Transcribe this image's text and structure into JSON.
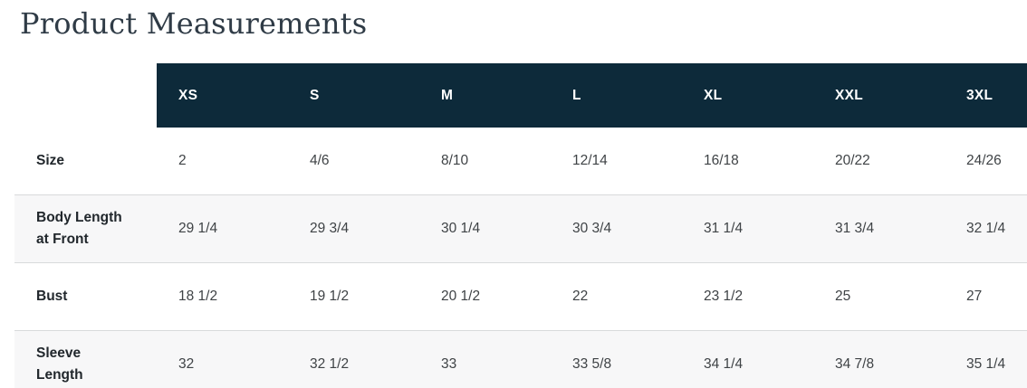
{
  "page": {
    "title": "Product Measurements"
  },
  "colors": {
    "header_bg": "#0d2a3a",
    "header_text": "#ffffff",
    "alt_row_bg": "#f7f7f8",
    "row_border": "#d8dadb",
    "title_text": "#2f3b46"
  },
  "table": {
    "columns": [
      "XS",
      "S",
      "M",
      "L",
      "XL",
      "XXL",
      "3XL"
    ],
    "rows": [
      {
        "label": "Size",
        "values": [
          "2",
          "4/6",
          "8/10",
          "12/14",
          "16/18",
          "20/22",
          "24/26"
        ]
      },
      {
        "label": "Body Length at Front",
        "values": [
          "29 1/4",
          "29 3/4",
          "30 1/4",
          "30 3/4",
          "31 1/4",
          "31 3/4",
          "32 1/4"
        ]
      },
      {
        "label": "Bust",
        "values": [
          "18 1/2",
          "19 1/2",
          "20 1/2",
          "22",
          "23 1/2",
          "25",
          "27"
        ]
      },
      {
        "label": "Sleeve Length",
        "values": [
          "32",
          "32 1/2",
          "33",
          "33 5/8",
          "34 1/4",
          "34 7/8",
          "35 1/4"
        ]
      }
    ]
  }
}
